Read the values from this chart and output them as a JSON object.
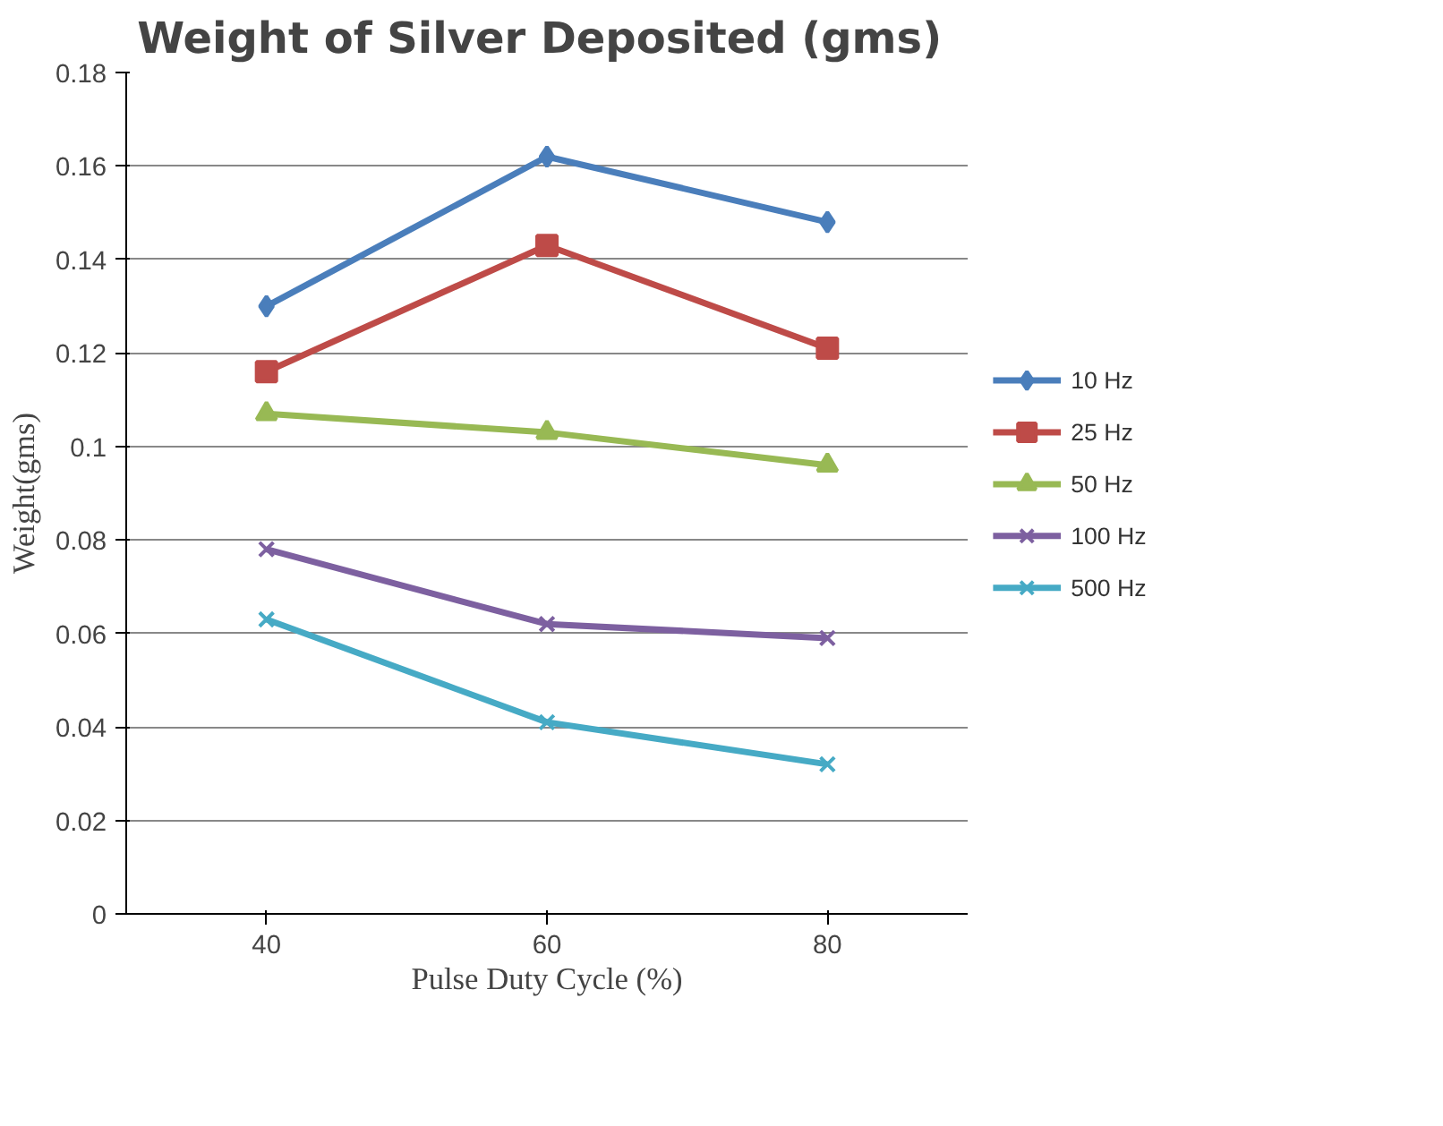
{
  "chart_data": {
    "type": "line",
    "title": "Weight of Silver Deposited  (gms)",
    "xlabel": "Pulse Duty Cycle (%)",
    "ylabel": "Weight(gms)",
    "categories": [
      "40",
      "60",
      "80"
    ],
    "series": [
      {
        "name": "10 Hz",
        "color": "#4a7ebb",
        "marker": "diamond",
        "values": [
          0.13,
          0.162,
          0.148
        ]
      },
      {
        "name": "25 Hz",
        "color": "#be4b48",
        "marker": "square",
        "values": [
          0.116,
          0.143,
          0.121
        ]
      },
      {
        "name": "50 Hz",
        "color": "#98b954",
        "marker": "triangle",
        "values": [
          0.107,
          0.103,
          0.096
        ]
      },
      {
        "name": "100 Hz",
        "color": "#7d60a0",
        "marker": "cross",
        "values": [
          0.078,
          0.062,
          0.059
        ]
      },
      {
        "name": "500 Hz",
        "color": "#46aac5",
        "marker": "cross",
        "values": [
          0.063,
          0.041,
          0.032
        ]
      }
    ],
    "ylim": [
      0,
      0.18
    ],
    "yticks": [
      0,
      0.02,
      0.04,
      0.06,
      0.08,
      {
        "value": 0.1,
        "label": "0.1"
      },
      0.12,
      0.14,
      0.16,
      0.18
    ],
    "grid": "y",
    "legend": "right",
    "line_style": "solid"
  }
}
